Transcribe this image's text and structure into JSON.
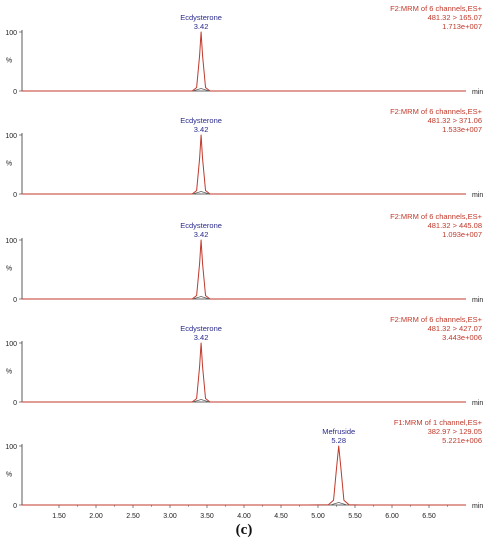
{
  "figure": {
    "caption": "(c)",
    "colors": {
      "trace": "#c0392b",
      "baseline": "#555555",
      "peak_label": "#2a2a8c",
      "header": "#c0392b",
      "axis": "#333333"
    }
  },
  "chart_data": [
    {
      "type": "line",
      "title": "",
      "xlabel": "min",
      "ylabel": "%",
      "ylim": [
        0,
        100
      ],
      "xlim": [
        1.0,
        7.0
      ],
      "yticks": [
        "0",
        "100"
      ],
      "xticks": [],
      "header": [
        "F2:MRM of 6 channels,ES+",
        "481.32 > 165.07",
        "1.713e+007"
      ],
      "peak": {
        "compound": "Ecdysterone",
        "rt": "3.42",
        "x": 3.42,
        "y": 100
      },
      "series": [
        {
          "x": [
            1.0,
            3.3,
            3.36,
            3.4,
            3.42,
            3.44,
            3.48,
            3.54,
            7.0
          ],
          "y": [
            0,
            0,
            6,
            60,
            100,
            60,
            6,
            0,
            0
          ]
        }
      ]
    },
    {
      "type": "line",
      "title": "",
      "xlabel": "min",
      "ylabel": "%",
      "ylim": [
        0,
        100
      ],
      "xlim": [
        1.0,
        7.0
      ],
      "yticks": [
        "0",
        "100"
      ],
      "xticks": [],
      "header": [
        "F2:MRM of 6 channels,ES+",
        "481.32 > 371.06",
        "1.533e+007"
      ],
      "peak": {
        "compound": "Ecdysterone",
        "rt": "3.42",
        "x": 3.42,
        "y": 100
      },
      "series": [
        {
          "x": [
            1.0,
            3.3,
            3.36,
            3.4,
            3.42,
            3.44,
            3.48,
            3.54,
            7.0
          ],
          "y": [
            0,
            0,
            6,
            60,
            100,
            60,
            6,
            0,
            0
          ]
        }
      ]
    },
    {
      "type": "line",
      "title": "",
      "xlabel": "min",
      "ylabel": "%",
      "ylim": [
        0,
        100
      ],
      "xlim": [
        1.0,
        7.0
      ],
      "yticks": [
        "0",
        "100"
      ],
      "xticks": [],
      "header": [
        "F2:MRM of 6 channels,ES+",
        "481.32 > 445.08",
        "1.093e+007"
      ],
      "peak": {
        "compound": "Ecdysterone",
        "rt": "3.42",
        "x": 3.42,
        "y": 100
      },
      "series": [
        {
          "x": [
            1.0,
            3.3,
            3.36,
            3.4,
            3.42,
            3.44,
            3.48,
            3.54,
            7.0
          ],
          "y": [
            0,
            0,
            6,
            60,
            100,
            60,
            6,
            0,
            0
          ]
        }
      ]
    },
    {
      "type": "line",
      "title": "",
      "xlabel": "min",
      "ylabel": "%",
      "ylim": [
        0,
        100
      ],
      "xlim": [
        1.0,
        7.0
      ],
      "yticks": [
        "0",
        "100"
      ],
      "xticks": [],
      "header": [
        "F2:MRM of 6 channels,ES+",
        "481.32 > 427.07",
        "3.443e+006"
      ],
      "peak": {
        "compound": "Ecdysterone",
        "rt": "3.42",
        "x": 3.42,
        "y": 100
      },
      "series": [
        {
          "x": [
            1.0,
            3.3,
            3.36,
            3.4,
            3.42,
            3.44,
            3.48,
            3.54,
            7.0
          ],
          "y": [
            0,
            0,
            6,
            60,
            100,
            60,
            6,
            0,
            0
          ]
        }
      ]
    },
    {
      "type": "line",
      "title": "",
      "xlabel": "min",
      "ylabel": "%",
      "ylim": [
        0,
        100
      ],
      "xlim": [
        1.0,
        7.0
      ],
      "yticks": [
        "0",
        "100"
      ],
      "xticks": [
        "1.50",
        "2.00",
        "2.50",
        "3.00",
        "3.50",
        "4.00",
        "4.50",
        "5.00",
        "5.50",
        "6.00",
        "6.50"
      ],
      "header": [
        "F1:MRM of 1 channel,ES+",
        "382.97 > 129.05",
        "5.221e+006"
      ],
      "peak": {
        "compound": "Mefruside",
        "rt": "5.28",
        "x": 5.28,
        "y": 100
      },
      "series": [
        {
          "x": [
            1.0,
            4.86,
            5.14,
            5.21,
            5.25,
            5.28,
            5.31,
            5.35,
            5.42,
            5.58,
            7.0
          ],
          "y": [
            0,
            0,
            0.5,
            8,
            62,
            100,
            62,
            8,
            0.5,
            0,
            0
          ]
        }
      ]
    }
  ]
}
